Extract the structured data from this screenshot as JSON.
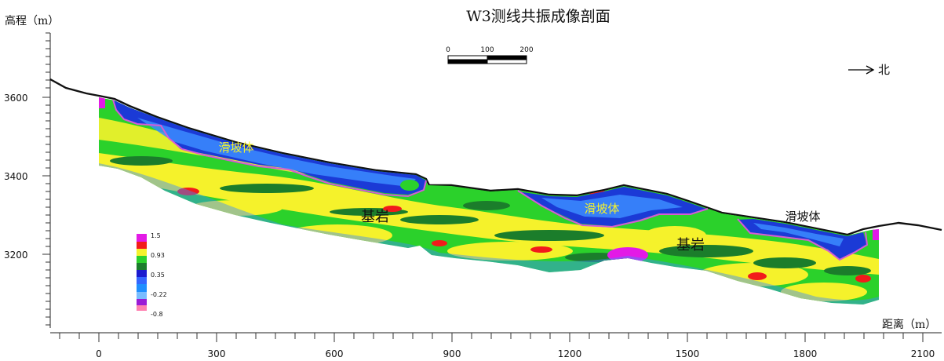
{
  "title": "W3测线共振成像剖面",
  "y_axis_label": "高程（m）",
  "x_axis_label": "距离（m）",
  "y_ticks": [
    "3600",
    "3400",
    "3200"
  ],
  "x_ticks": [
    "0",
    "300",
    "600",
    "900",
    "1200",
    "1500",
    "1800",
    "2100"
  ],
  "scale_bar": {
    "labels": [
      "0",
      "100",
      "200"
    ]
  },
  "north_label": "北",
  "region_labels": {
    "landslide_1": "滑坡体",
    "landslide_2": "滑坡体",
    "landslide_3": "滑坡体",
    "bedrock_1": "基岩",
    "bedrock_2": "基岩"
  },
  "legend": {
    "labels": [
      "1.5",
      "0.93",
      "0.35",
      "-0.22",
      "-0.8"
    ],
    "colors": [
      "#e31ae6",
      "#f21b1b",
      "#f5f22b",
      "#2bd12b",
      "#1b7d2b",
      "#1b1bcf",
      "#3366ff",
      "#1f8fff",
      "#9a1bd6",
      "#ff80b0"
    ]
  },
  "colors": {
    "bedrock_green": "#2bd12b",
    "dark_green": "#1b7d2b",
    "yellow": "#f5f22b",
    "blue": "#1b3ad6",
    "light_blue": "#3b8cff",
    "red": "#f21b1b",
    "magenta": "#e31ae6",
    "boundary": "#d65ad6"
  }
}
